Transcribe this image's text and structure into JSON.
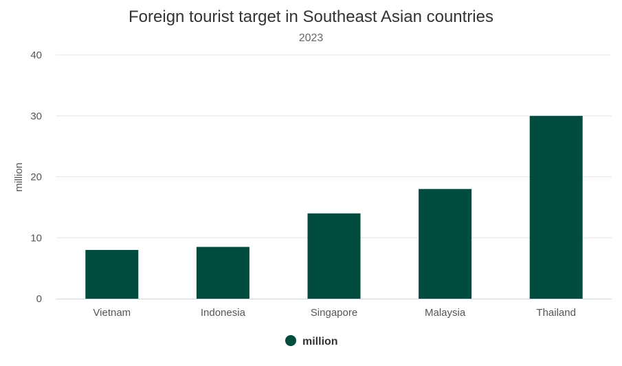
{
  "chart_data": {
    "type": "bar",
    "title": "Foreign tourist target in Southeast Asian countries",
    "subtitle": "2023",
    "ylabel": "million",
    "xlabel": "",
    "categories": [
      "Vietnam",
      "Indonesia",
      "Singapore",
      "Malaysia",
      "Thailand"
    ],
    "series": [
      {
        "name": "million",
        "color": "#004d40",
        "values": [
          8,
          8.5,
          14,
          18,
          30
        ]
      }
    ],
    "ylim": [
      0,
      40
    ],
    "yticks": [
      "0",
      "10",
      "20",
      "30",
      "40"
    ],
    "grid": true,
    "legend_position": "bottom-center"
  }
}
